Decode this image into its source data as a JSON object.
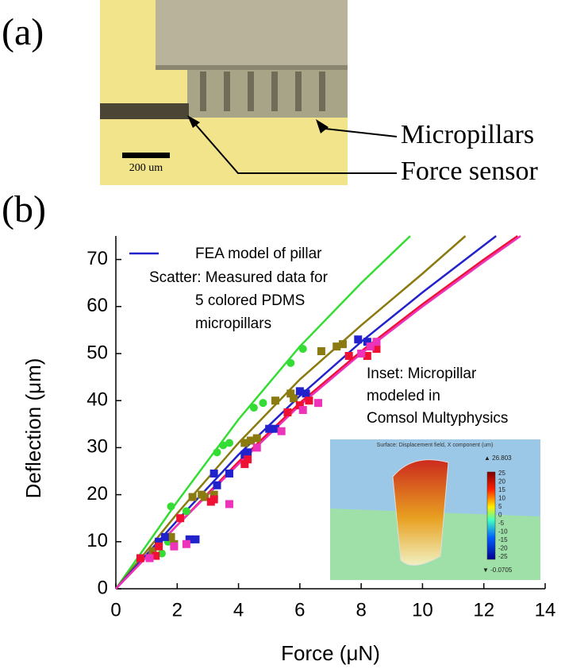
{
  "panel_a": {
    "label": "(a)",
    "scale_bar": "200 um",
    "annotations": [
      "Micropillars",
      "Force sensor"
    ]
  },
  "panel_b_label": "(b)",
  "chart_data": {
    "type": "scatter",
    "xlabel": "Force (μN)",
    "ylabel": "Deflection (μm)",
    "xlim": [
      0,
      14
    ],
    "ylim": [
      0,
      75
    ],
    "xticks": [
      0,
      2,
      4,
      6,
      8,
      10,
      12,
      14
    ],
    "yticks": [
      0,
      10,
      20,
      30,
      40,
      50,
      60,
      70
    ],
    "legend": {
      "line": "FEA model of pillar",
      "line_color": "#2222cc",
      "scatter": [
        "Scatter: Measured data for",
        "5 colored PDMS",
        "micropillars"
      ]
    },
    "annotation": [
      "Inset: Micropillar",
      "modeled in",
      "Comsol Multyphysics"
    ],
    "lines": [
      {
        "color": "#33dd33",
        "x": [
          0,
          2,
          4,
          6,
          8,
          9.6
        ],
        "values": [
          0,
          18.5,
          36,
          51.5,
          65,
          75
        ]
      },
      {
        "color": "#8a7a10",
        "x": [
          0,
          2,
          4,
          6,
          8,
          10,
          11.4
        ],
        "values": [
          0,
          16,
          31,
          44.5,
          56,
          67,
          75
        ]
      },
      {
        "color": "#2222cc",
        "x": [
          0,
          2,
          4,
          6,
          8,
          10,
          12.4
        ],
        "values": [
          0,
          14.5,
          28.5,
          41,
          52.5,
          63,
          75
        ]
      },
      {
        "color": "#ee1133",
        "x": [
          0,
          2,
          4,
          6,
          8,
          10,
          12,
          13.1
        ],
        "values": [
          0,
          13.5,
          27,
          39.5,
          50.5,
          60.5,
          70,
          75
        ]
      },
      {
        "color": "#ee33bb",
        "x": [
          0,
          2,
          4,
          6,
          8,
          10,
          12,
          13.2
        ],
        "values": [
          0,
          13.5,
          26.5,
          39,
          50,
          60,
          69.5,
          75
        ]
      }
    ],
    "points": [
      {
        "color": "#33dd33",
        "marker": "circle",
        "x": [
          1.8,
          1.5,
          1.7,
          2.3,
          3.3,
          3.5,
          3.7,
          4.5,
          4.8,
          5.7,
          6.1
        ],
        "values": [
          17.5,
          7.5,
          10,
          16.5,
          29,
          30.5,
          31,
          38.5,
          39.5,
          48,
          51
        ]
      },
      {
        "color": "#8a7a10",
        "marker": "square",
        "x": [
          1.2,
          1.8,
          1.9,
          2.5,
          2.8,
          2.9,
          3.2,
          4.2,
          4.4,
          4.6,
          5.2,
          5.7,
          5.8,
          6.7,
          7.2,
          7.4
        ],
        "values": [
          8,
          11,
          9.5,
          19.5,
          20,
          19.5,
          20,
          31,
          31.5,
          32,
          40,
          41.5,
          40.5,
          50.5,
          51.5,
          52
        ]
      },
      {
        "color": "#2222cc",
        "marker": "square",
        "x": [
          1.4,
          1.6,
          2.4,
          2.6,
          3.2,
          3.3,
          3.7,
          4.2,
          4.3,
          5.0,
          5.2,
          6.0,
          6.2,
          7.9,
          8.2
        ],
        "values": [
          10,
          11,
          10.5,
          10.5,
          24.5,
          22,
          24.5,
          28.5,
          29,
          34,
          34,
          42,
          41.5,
          53,
          52.5
        ]
      },
      {
        "color": "#ee1133",
        "marker": "square",
        "x": [
          0.8,
          1.3,
          1.4,
          2.1,
          3.1,
          3.2,
          4.2,
          4.3,
          5.6,
          6.0,
          6.3,
          7.6,
          8.2,
          8.5
        ],
        "values": [
          6.5,
          7,
          9,
          15,
          18.5,
          19,
          26.5,
          27.5,
          37.5,
          39,
          40,
          49.5,
          49.5,
          51
        ]
      },
      {
        "color": "#ee33bb",
        "marker": "square",
        "x": [
          1.1,
          1.9,
          2.3,
          3.7,
          4.6,
          5.4,
          6.1,
          6.6,
          8.0,
          8.3,
          8.5
        ],
        "values": [
          6.5,
          9,
          9.5,
          18,
          30,
          33.5,
          38,
          39.5,
          50,
          51.5,
          52.5
        ]
      }
    ]
  },
  "inset": {
    "caption": "Surface: Displacement field, X component (um)",
    "max_label": "▲ 26.803",
    "min_label": "▼ -0.0705",
    "colorbar_ticks": [
      "25",
      "20",
      "15",
      "10",
      "5",
      "0",
      "-5",
      "-10",
      "-15",
      "-20",
      "-25"
    ]
  }
}
